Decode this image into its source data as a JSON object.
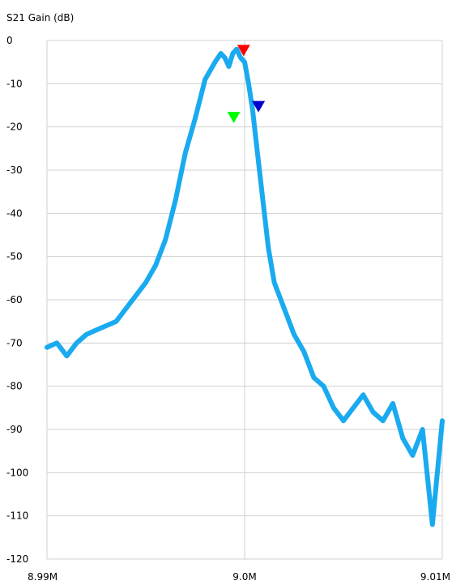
{
  "chart_data": {
    "type": "line",
    "ylabel": "S21 Gain (dB)",
    "xlim": [
      8.99,
      9.01
    ],
    "ylim": [
      -120,
      0
    ],
    "x_unit": "MHz",
    "x_ticks": [
      {
        "value": 8.99,
        "label": "8.99M"
      },
      {
        "value": 9.0,
        "label": "9.0M"
      },
      {
        "value": 9.01,
        "label": "9.01M"
      }
    ],
    "y_ticks": [
      0,
      -10,
      -20,
      -30,
      -40,
      -50,
      -60,
      -70,
      -80,
      -90,
      -100,
      -110,
      -120
    ],
    "grid": true,
    "series": [
      {
        "color": "#1aaaf0",
        "x": [
          8.99,
          8.9905,
          8.991,
          8.9915,
          8.992,
          8.9925,
          8.993,
          8.9935,
          8.994,
          8.9945,
          8.995,
          8.9955,
          8.996,
          8.9965,
          8.997,
          8.9975,
          8.998,
          8.9985,
          8.9988,
          8.999,
          8.9992,
          8.9994,
          8.9996,
          8.9998,
          9.0,
          9.0002,
          9.0004,
          9.0006,
          9.0008,
          9.001,
          9.0012,
          9.0015,
          9.002,
          9.0025,
          9.003,
          9.0035,
          9.004,
          9.0045,
          9.005,
          9.0055,
          9.006,
          9.0065,
          9.007,
          9.0075,
          9.008,
          9.0085,
          9.009,
          9.0095,
          9.01
        ],
        "y": [
          -71,
          -70,
          -73,
          -70,
          -68,
          -67,
          -66,
          -65,
          -62,
          -59,
          -56,
          -52,
          -46,
          -37,
          -26,
          -18,
          -9,
          -5,
          -3,
          -4,
          -6,
          -3,
          -2,
          -4,
          -5,
          -10,
          -16,
          -24,
          -32,
          -40,
          -48,
          -56,
          -62,
          -68,
          -72,
          -78,
          -80,
          -85,
          -88,
          -85,
          -82,
          -86,
          -88,
          -84,
          -92,
          -96,
          -90,
          -112,
          -88
        ]
      }
    ],
    "markers": [
      {
        "x": 8.99945,
        "y": -18,
        "color": "#00ff00"
      },
      {
        "x": 8.99995,
        "y": -2.5,
        "color": "#ff0000"
      },
      {
        "x": 9.0007,
        "y": -15.5,
        "color": "#0000cc"
      }
    ]
  }
}
